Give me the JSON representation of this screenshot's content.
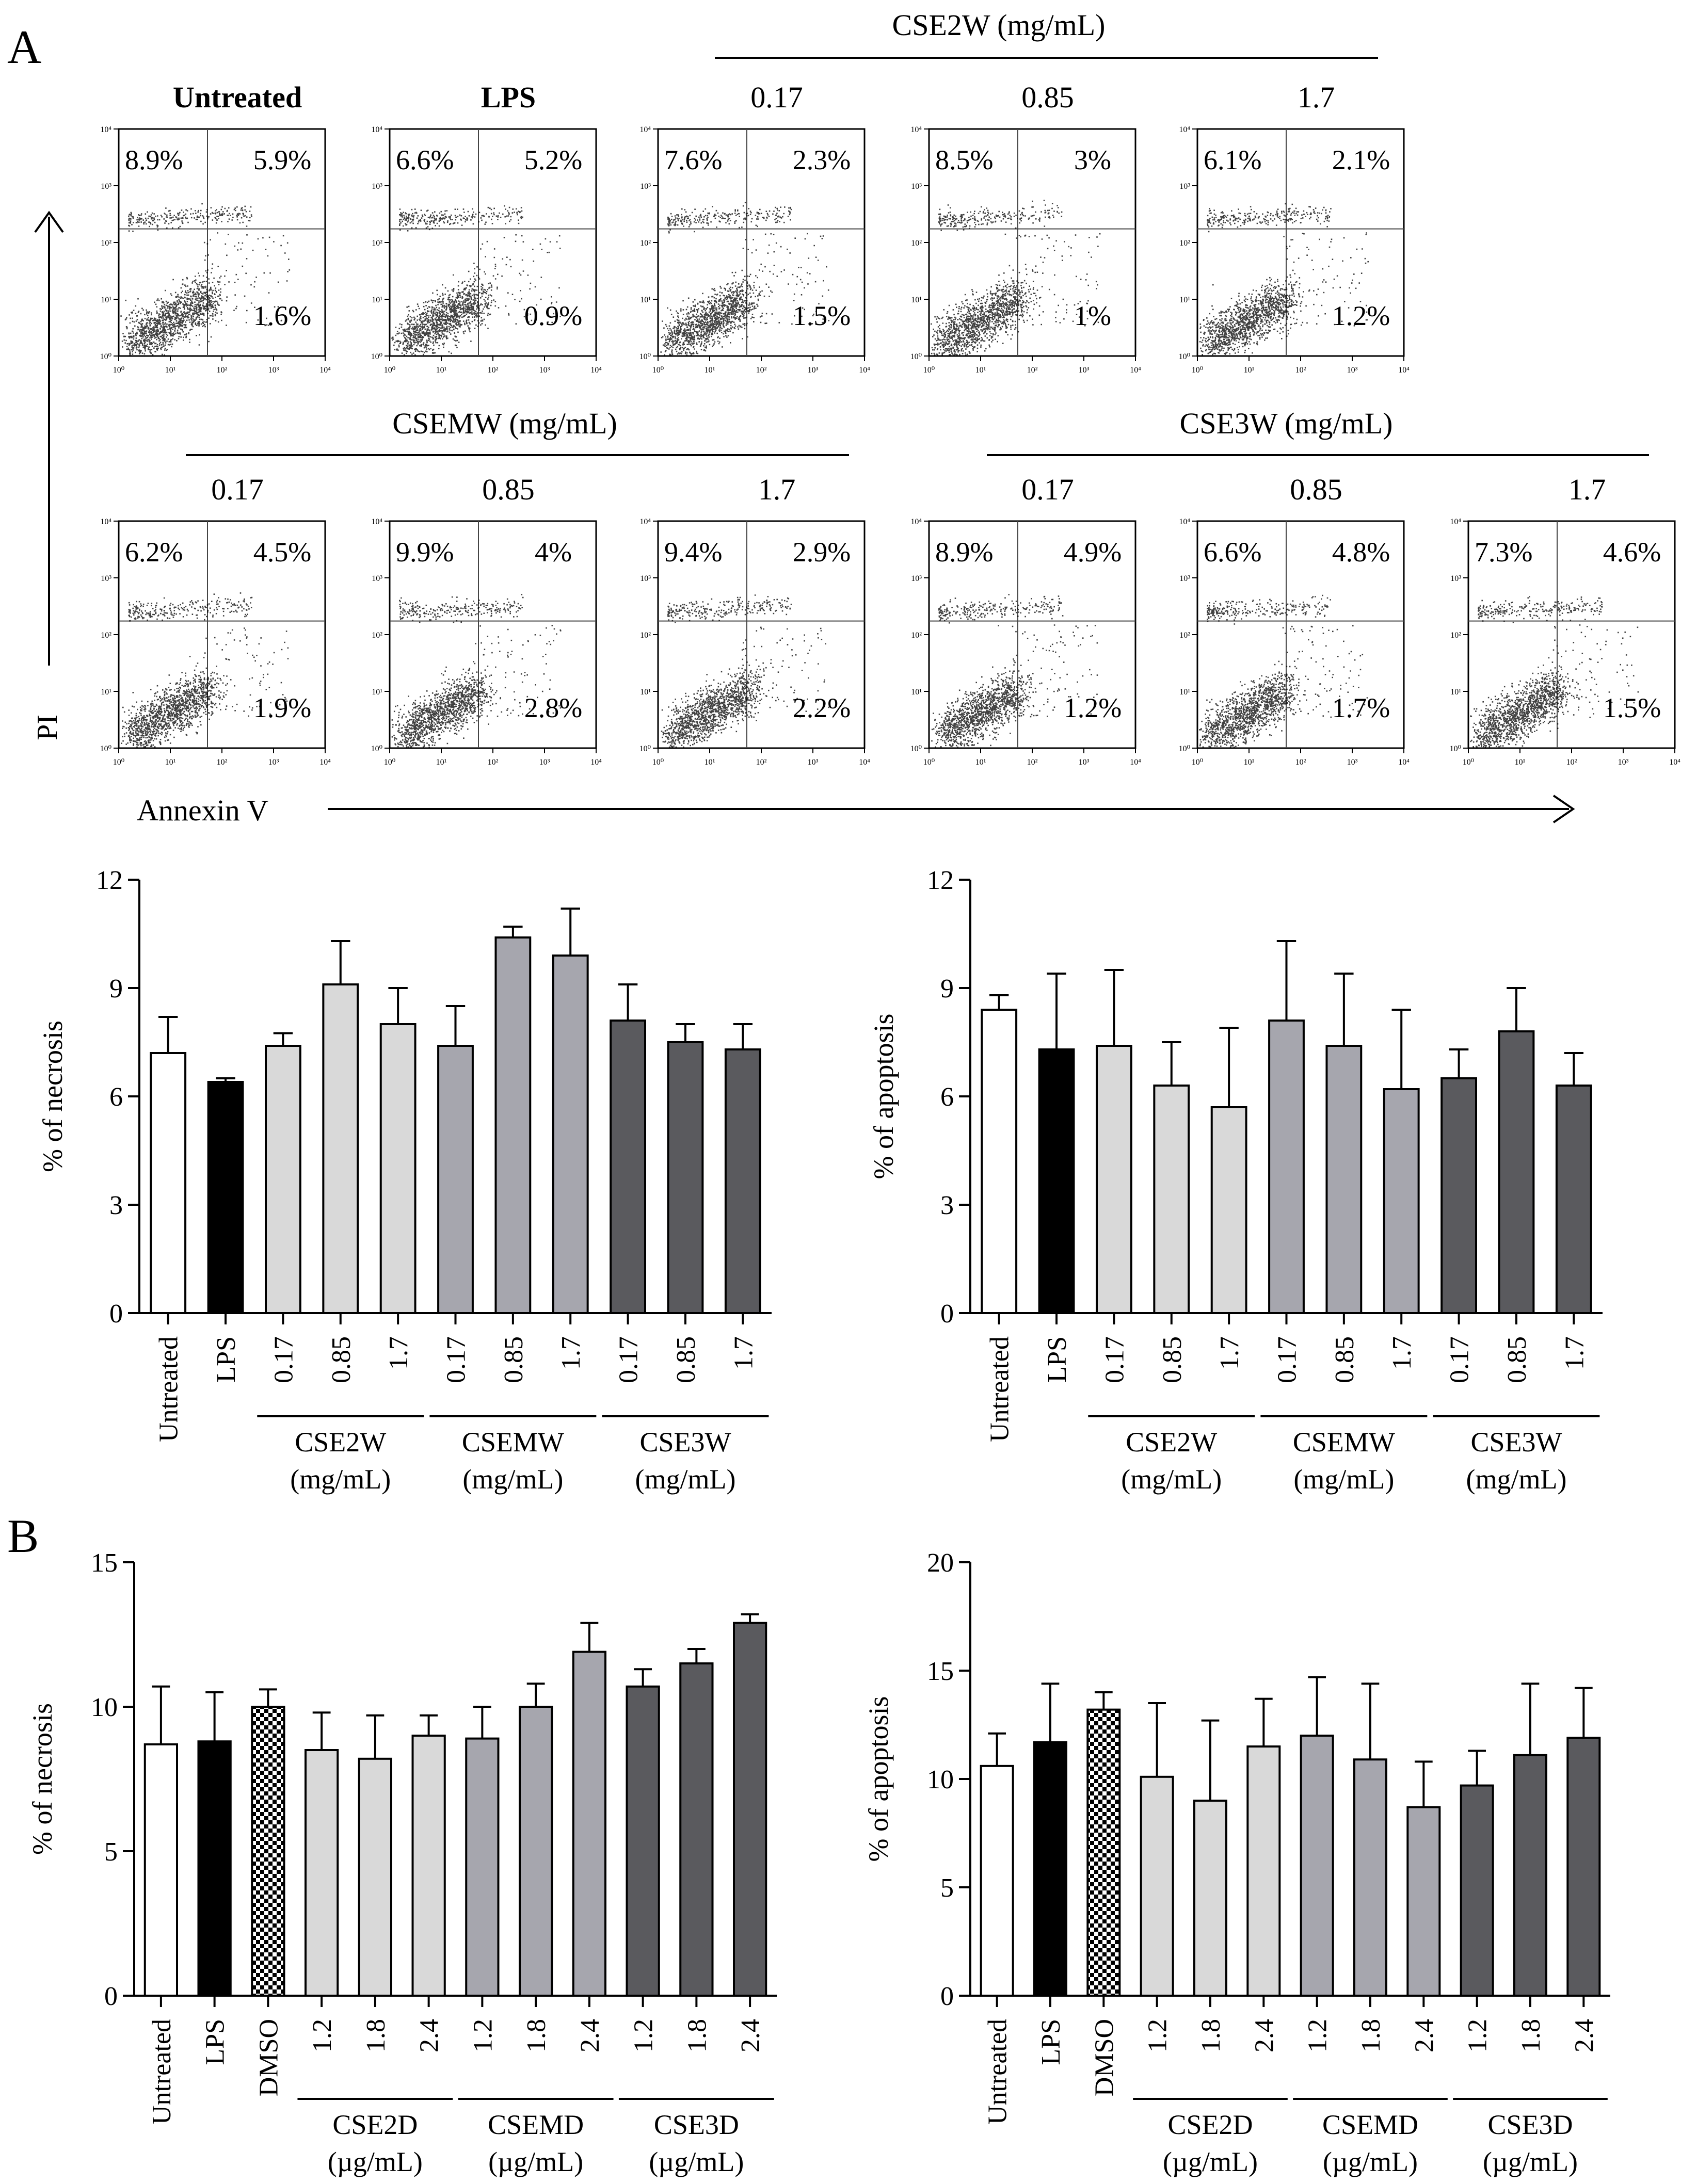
{
  "panels": {
    "A": "A",
    "B": "B"
  },
  "flow": {
    "y_axis_label": "PI",
    "x_axis_label": "Annexin V",
    "row1": {
      "group_label": "CSE2W (mg/mL)",
      "plots": [
        {
          "label": "Untreated",
          "bold": true,
          "ul": "8.9%",
          "ur": "5.9%",
          "lr": "1.6%"
        },
        {
          "label": "LPS",
          "bold": true,
          "ul": "6.6%",
          "ur": "5.2%",
          "lr": "0.9%"
        },
        {
          "label": "0.17",
          "bold": false,
          "ul": "7.6%",
          "ur": "2.3%",
          "lr": "1.5%"
        },
        {
          "label": "0.85",
          "bold": false,
          "ul": "8.5%",
          "ur": "3%",
          "lr": "1%"
        },
        {
          "label": "1.7",
          "bold": false,
          "ul": "6.1%",
          "ur": "2.1%",
          "lr": "1.2%"
        }
      ]
    },
    "row2": {
      "group_labels": [
        "CSEMW (mg/mL)",
        "CSE3W (mg/mL)"
      ],
      "plots": [
        {
          "label": "0.17",
          "ul": "6.2%",
          "ur": "4.5%",
          "lr": "1.9%"
        },
        {
          "label": "0.85",
          "ul": "9.9%",
          "ur": "4%",
          "lr": "2.8%"
        },
        {
          "label": "1.7",
          "ul": "9.4%",
          "ur": "2.9%",
          "lr": "2.2%"
        },
        {
          "label": "0.17",
          "ul": "8.9%",
          "ur": "4.9%",
          "lr": "1.2%"
        },
        {
          "label": "0.85",
          "ul": "6.6%",
          "ur": "4.8%",
          "lr": "1.7%"
        },
        {
          "label": "1.7",
          "ul": "7.3%",
          "ur": "4.6%",
          "lr": "1.5%"
        }
      ]
    },
    "tick_labels": [
      "10⁰",
      "10¹",
      "10²",
      "10³",
      "10⁴"
    ]
  },
  "colors": {
    "white": "#ffffff",
    "black": "#000000",
    "light": "#d9d9d9",
    "mid": "#a6a6ae",
    "dark": "#5a5a5e",
    "checker": "#000000"
  },
  "chart_data": [
    {
      "id": "A-necrosis",
      "type": "bar",
      "ylabel": "% of necrosis",
      "ylim": [
        0,
        12
      ],
      "yticks": [
        "0",
        "3",
        "6",
        "9",
        "12"
      ],
      "categories": [
        "Untreated",
        "LPS",
        "0.17",
        "0.85",
        "1.7",
        "0.17",
        "0.85",
        "1.7",
        "0.17",
        "0.85",
        "1.7"
      ],
      "values": [
        7.2,
        6.4,
        7.4,
        9.1,
        8.0,
        7.4,
        10.4,
        9.9,
        8.1,
        7.5,
        7.3
      ],
      "errors": [
        1.0,
        0.1,
        0.35,
        1.2,
        1.0,
        1.1,
        0.3,
        1.3,
        1.0,
        0.5,
        0.7
      ],
      "fills": [
        "white",
        "black",
        "light",
        "light",
        "light",
        "mid",
        "mid",
        "mid",
        "dark",
        "dark",
        "dark"
      ],
      "groups": [
        {
          "line1": "CSE2W",
          "line2": "(mg/mL)",
          "from": 2,
          "to": 4
        },
        {
          "line1": "CSEMW",
          "line2": "(mg/mL)",
          "from": 5,
          "to": 7
        },
        {
          "line1": "CSE3W",
          "line2": "(mg/mL)",
          "from": 8,
          "to": 10
        }
      ]
    },
    {
      "id": "A-apoptosis",
      "type": "bar",
      "ylabel": "% of apoptosis",
      "ylim": [
        0,
        12
      ],
      "yticks": [
        "0",
        "3",
        "6",
        "9",
        "12"
      ],
      "categories": [
        "Untreated",
        "LPS",
        "0.17",
        "0.85",
        "1.7",
        "0.17",
        "0.85",
        "1.7",
        "0.17",
        "0.85",
        "1.7"
      ],
      "values": [
        8.4,
        7.3,
        7.4,
        6.3,
        5.7,
        8.1,
        7.4,
        6.2,
        6.5,
        7.8,
        6.3
      ],
      "errors": [
        0.4,
        2.1,
        2.1,
        1.2,
        2.2,
        2.2,
        2.0,
        2.2,
        0.8,
        1.2,
        0.9
      ],
      "fills": [
        "white",
        "black",
        "light",
        "light",
        "light",
        "mid",
        "mid",
        "mid",
        "dark",
        "dark",
        "dark"
      ],
      "groups": [
        {
          "line1": "CSE2W",
          "line2": "(mg/mL)",
          "from": 2,
          "to": 4
        },
        {
          "line1": "CSEMW",
          "line2": "(mg/mL)",
          "from": 5,
          "to": 7
        },
        {
          "line1": "CSE3W",
          "line2": "(mg/mL)",
          "from": 8,
          "to": 10
        }
      ]
    },
    {
      "id": "B-necrosis",
      "type": "bar",
      "ylabel": "% of necrosis",
      "ylim": [
        0,
        15
      ],
      "yticks": [
        "0",
        "5",
        "10",
        "15"
      ],
      "categories": [
        "Untreated",
        "LPS",
        "DMSO",
        "1.2",
        "1.8",
        "2.4",
        "1.2",
        "1.8",
        "2.4",
        "1.2",
        "1.8",
        "2.4"
      ],
      "values": [
        8.7,
        8.8,
        10.0,
        8.5,
        8.2,
        9.0,
        8.9,
        10.0,
        11.9,
        10.7,
        11.5,
        12.9
      ],
      "errors": [
        2.0,
        1.7,
        0.6,
        1.3,
        1.5,
        0.7,
        1.1,
        0.8,
        1.0,
        0.6,
        0.5,
        0.3
      ],
      "fills": [
        "white",
        "black",
        "checker",
        "light",
        "light",
        "light",
        "mid",
        "mid",
        "mid",
        "dark",
        "dark",
        "dark"
      ],
      "groups": [
        {
          "line1": "CSE2D",
          "line2": "(µg/mL)",
          "from": 3,
          "to": 5
        },
        {
          "line1": "CSEMD",
          "line2": "(µg/mL)",
          "from": 6,
          "to": 8
        },
        {
          "line1": "CSE3D",
          "line2": "(µg/mL)",
          "from": 9,
          "to": 11
        }
      ]
    },
    {
      "id": "B-apoptosis",
      "type": "bar",
      "ylabel": "% of apoptosis",
      "ylim": [
        0,
        20
      ],
      "yticks": [
        "0",
        "5",
        "10",
        "15",
        "20"
      ],
      "categories": [
        "Untreated",
        "LPS",
        "DMSO",
        "1.2",
        "1.8",
        "2.4",
        "1.2",
        "1.8",
        "2.4",
        "1.2",
        "1.8",
        "2.4"
      ],
      "values": [
        10.6,
        11.7,
        13.2,
        10.1,
        9.0,
        11.5,
        12.0,
        10.9,
        8.7,
        9.7,
        11.1,
        11.9
      ],
      "errors": [
        1.5,
        2.7,
        0.8,
        3.4,
        3.7,
        2.2,
        2.7,
        3.5,
        2.1,
        1.6,
        3.3,
        2.3
      ],
      "fills": [
        "white",
        "black",
        "checker",
        "light",
        "light",
        "light",
        "mid",
        "mid",
        "mid",
        "dark",
        "dark",
        "dark"
      ],
      "groups": [
        {
          "line1": "CSE2D",
          "line2": "(µg/mL)",
          "from": 3,
          "to": 5
        },
        {
          "line1": "CSEMD",
          "line2": "(µg/mL)",
          "from": 6,
          "to": 8
        },
        {
          "line1": "CSE3D",
          "line2": "(µg/mL)",
          "from": 9,
          "to": 11
        }
      ]
    }
  ]
}
